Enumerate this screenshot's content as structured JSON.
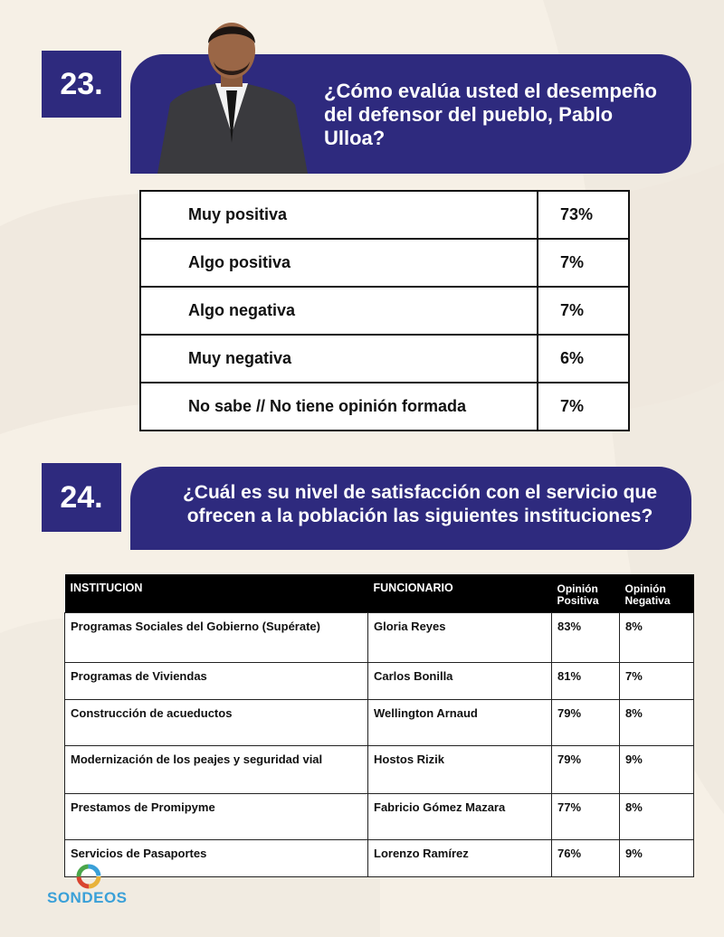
{
  "colors": {
    "banner": "#2e2a7e",
    "background": "#f6f0e6",
    "logo_blue": "#3aa0d8"
  },
  "q23": {
    "number": "23.",
    "question": "¿Cómo evalúa usted el desempeño del defensor del pueblo, Pablo Ulloa?",
    "rows": [
      {
        "label": "Muy positiva",
        "value": "73%"
      },
      {
        "label": "Algo positiva",
        "value": "7%"
      },
      {
        "label": "Algo negativa",
        "value": "7%"
      },
      {
        "label": "Muy negativa",
        "value": "6%"
      },
      {
        "label": "No sabe // No tiene opinión formada",
        "value": "7%"
      }
    ]
  },
  "q24": {
    "number": "24.",
    "question": "¿Cuál es su nivel de satisfacción con el servicio que ofrecen a la población las siguientes instituciones?",
    "headers": {
      "institucion": "INSTITUCION",
      "funcionario": "FUNCIONARIO",
      "positiva": "Opinión Positiva",
      "negativa": "Opinión Negativa"
    },
    "rows": [
      {
        "institucion": "Programas Sociales del Gobierno (Supérate)",
        "funcionario": "Gloria Reyes",
        "positiva": "83%",
        "negativa": "8%"
      },
      {
        "institucion": "Programas de Viviendas",
        "funcionario": "Carlos Bonilla",
        "positiva": "81%",
        "negativa": "7%"
      },
      {
        "institucion": "Construcción de acueductos",
        "funcionario": "Wellington Arnaud",
        "positiva": "79%",
        "negativa": "8%"
      },
      {
        "institucion": "Modernización de los peajes y seguridad vial",
        "funcionario": "Hostos Rizik",
        "positiva": "79%",
        "negativa": "9%"
      },
      {
        "institucion": "Prestamos de Promipyme",
        "funcionario": "Fabricio Gómez Mazara",
        "positiva": "77%",
        "negativa": "8%"
      },
      {
        "institucion": "Servicios de Pasaportes",
        "funcionario": "Lorenzo Ramírez",
        "positiva": "76%",
        "negativa": "9%"
      }
    ]
  },
  "logo": {
    "text": "SONDEOS"
  }
}
